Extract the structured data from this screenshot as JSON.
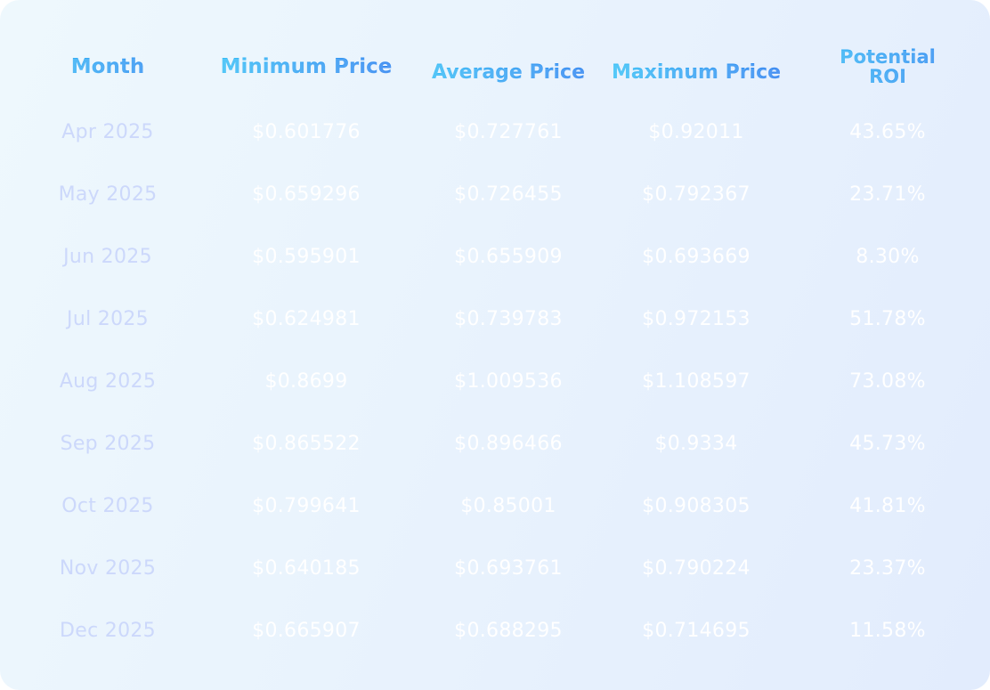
{
  "table": {
    "headers": {
      "month": "Month",
      "min": "Minimum Price",
      "avg": "Average Price",
      "max": "Maximum Price",
      "roi_line1": "Potential",
      "roi_line2": "ROI"
    },
    "rows": [
      {
        "month": "Apr 2025",
        "min": "$0.601776",
        "avg": "$0.727761",
        "max": "$0.92011",
        "roi": "43.65%"
      },
      {
        "month": "May 2025",
        "min": "$0.659296",
        "avg": "$0.726455",
        "max": "$0.792367",
        "roi": "23.71%"
      },
      {
        "month": "Jun 2025",
        "min": "$0.595901",
        "avg": "$0.655909",
        "max": "$0.693669",
        "roi": "8.30%"
      },
      {
        "month": "Jul 2025",
        "min": "$0.624981",
        "avg": "$0.739783",
        "max": "$0.972153",
        "roi": "51.78%"
      },
      {
        "month": "Aug 2025",
        "min": "$0.8699",
        "avg": "$1.009536",
        "max": "$1.108597",
        "roi": "73.08%"
      },
      {
        "month": "Sep 2025",
        "min": "$0.865522",
        "avg": "$0.896466",
        "max": "$0.9334",
        "roi": "45.73%"
      },
      {
        "month": "Oct 2025",
        "min": "$0.799641",
        "avg": "$0.85001",
        "max": "$0.908305",
        "roi": "41.81%"
      },
      {
        "month": "Nov 2025",
        "min": "$0.640185",
        "avg": "$0.693761",
        "max": "$0.790224",
        "roi": "23.37%"
      },
      {
        "month": "Dec 2025",
        "min": "$0.665907",
        "avg": "$0.688295",
        "max": "$0.714695",
        "roi": "11.58%"
      }
    ]
  },
  "colors": {
    "header_gradient_start": "#38c3f7",
    "header_gradient_end": "#2f7ff0",
    "month_text": "#ccd8fb",
    "value_text": "#ffffff",
    "card_background": "#eaf4fd"
  }
}
